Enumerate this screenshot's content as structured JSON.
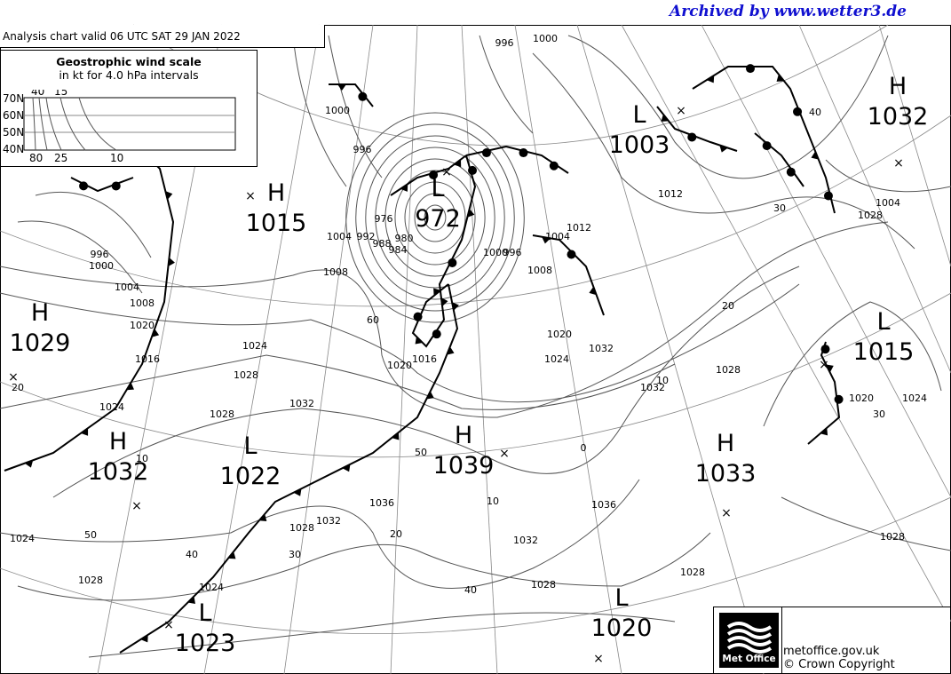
{
  "archive_label": "Archived by www.wetter3.de",
  "chart_title": "Analysis chart  valid 06 UTC SAT 29  JAN 2022",
  "wind_scale": {
    "title": "Geostrophic wind scale",
    "subtitle": "in kt for 4.0 hPa intervals",
    "lat_labels": [
      "70N",
      "60N",
      "50N",
      "40N"
    ],
    "top_labels": [
      "40",
      "15"
    ],
    "bottom_labels": [
      "80",
      "25",
      "10"
    ]
  },
  "pressure_centres": [
    {
      "type": "H",
      "value": "1015"
    },
    {
      "type": "L",
      "value": "972"
    },
    {
      "type": "L",
      "value": "1003"
    },
    {
      "type": "H",
      "value": "1032"
    },
    {
      "type": "H",
      "value": "1029"
    },
    {
      "type": "H",
      "value": "1032"
    },
    {
      "type": "L",
      "value": "1022"
    },
    {
      "type": "H",
      "value": "1039"
    },
    {
      "type": "H",
      "value": "1033"
    },
    {
      "type": "L",
      "value": "1015"
    },
    {
      "type": "L",
      "value": "1020"
    },
    {
      "type": "L",
      "value": "1023"
    }
  ],
  "isobar_labels": [
    "1000",
    "996",
    "1000",
    "996",
    "1004",
    "1008",
    "1008",
    "1012",
    "1016",
    "1020",
    "1004",
    "1008",
    "992",
    "988",
    "984",
    "980",
    "976",
    "1004",
    "1000",
    "996",
    "1016",
    "1020",
    "1024",
    "1028",
    "1032",
    "1024",
    "1028",
    "1016",
    "1020",
    "1028",
    "1032",
    "1036",
    "1028",
    "1032",
    "1024",
    "1028",
    "1024",
    "1028",
    "1016",
    "1020",
    "1024",
    "1028",
    "996",
    "1000",
    "1004",
    "1004",
    "1008",
    "1012",
    "1020",
    "1032",
    "1036",
    "1032",
    "1028",
    "1024",
    "1028",
    "1020",
    "1024",
    "1028"
  ],
  "wind_labels": [
    "60",
    "50",
    "40",
    "30",
    "20",
    "10",
    "0",
    "10",
    "20",
    "30",
    "40",
    "50",
    "40",
    "30",
    "20",
    "10"
  ],
  "footer": {
    "logo_text": "Met Office",
    "site": "metoffice.gov.uk",
    "copyright": "© Crown Copyright"
  }
}
